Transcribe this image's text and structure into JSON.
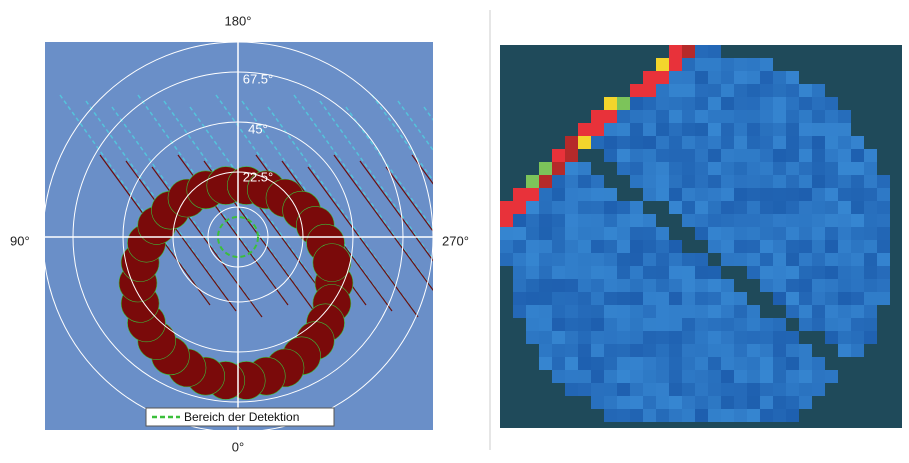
{
  "left_panel": {
    "angle_labels": {
      "top": "180°",
      "bottom": "0°",
      "left": "90°",
      "right": "270°"
    },
    "ring_labels": [
      "67.5°",
      "45°",
      "22.5°"
    ],
    "legend": "Bereich der Detektion"
  }
}
